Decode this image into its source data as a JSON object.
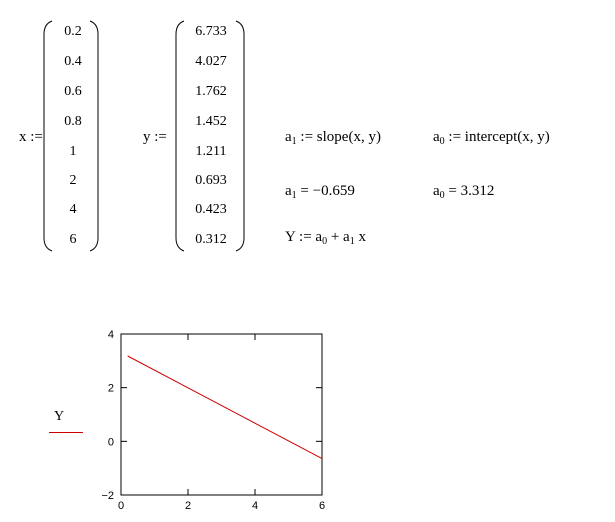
{
  "x": {
    "label": "x :=",
    "values": [
      "0.2",
      "0.4",
      "0.6",
      "0.8",
      "1",
      "2",
      "4",
      "6"
    ]
  },
  "y": {
    "label": "y :=",
    "values": [
      "6.733",
      "4.027",
      "1.762",
      "1.452",
      "1.211",
      "0.693",
      "0.423",
      "0.312"
    ]
  },
  "equations": {
    "a1_def": {
      "lhs": "a",
      "sub": "1",
      "rhs": " := slope(x, y)"
    },
    "a0_def": {
      "lhs": "a",
      "sub": "0",
      "rhs": " := intercept(x, y)"
    },
    "a1_val": {
      "lhs": "a",
      "sub": "1",
      "rhs": " = −0.659"
    },
    "a0_val": {
      "lhs": "a",
      "sub": "0",
      "rhs": " = 3.312"
    },
    "model": {
      "p1": "Y := a",
      "s1": "0",
      "p2": " + a",
      "s2": "1",
      "p3": " x"
    }
  },
  "chart_data": {
    "type": "line",
    "legend": "Y",
    "series_color": "#cc0000",
    "xlim": [
      0,
      6
    ],
    "ylim": [
      -2,
      4
    ],
    "xticks": [
      "0",
      "2",
      "4",
      "6"
    ],
    "yticks": [
      "4",
      "2",
      "0",
      "−2"
    ],
    "xtick_values": [
      0,
      2,
      4,
      6
    ],
    "ytick_values": [
      4,
      2,
      0,
      -2
    ],
    "series": [
      {
        "name": "Y",
        "x": [
          0.2,
          6
        ],
        "y": [
          3.18,
          -0.642
        ]
      }
    ]
  }
}
